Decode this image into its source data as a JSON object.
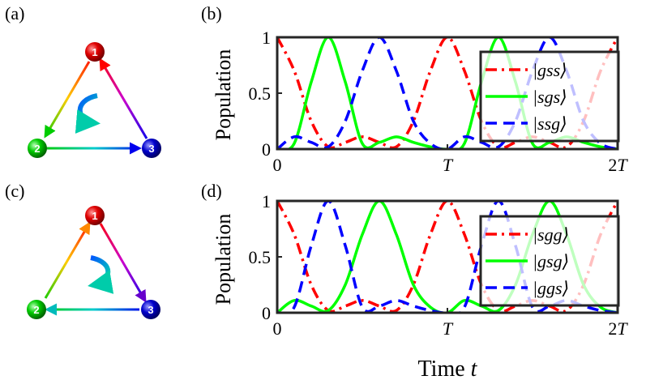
{
  "panels": {
    "a": "(a)",
    "b": "(b)",
    "c": "(c)",
    "d": "(d)"
  },
  "diagrams": [
    {
      "panel": "a",
      "direction": "counterclockwise",
      "nodes": [
        {
          "label": "1",
          "color": "#e00000"
        },
        {
          "label": "2",
          "color": "#00cc00"
        },
        {
          "label": "3",
          "color": "#0000cc"
        }
      ]
    },
    {
      "panel": "c",
      "direction": "clockwise",
      "nodes": [
        {
          "label": "1",
          "color": "#e00000"
        },
        {
          "label": "2",
          "color": "#00cc00"
        },
        {
          "label": "3",
          "color": "#0000cc"
        }
      ]
    }
  ],
  "chart_data": [
    {
      "panel": "b",
      "type": "line",
      "ylabel": "Population",
      "xlabel": "",
      "xlim": [
        0,
        2
      ],
      "ylim": [
        0,
        1
      ],
      "xticks": [
        {
          "value": 0,
          "label": "0"
        },
        {
          "value": 1,
          "label": "T"
        },
        {
          "value": 2,
          "label": "2T"
        }
      ],
      "yticks": [
        {
          "value": 0,
          "label": "0"
        },
        {
          "value": 0.5,
          "label": "0.5"
        },
        {
          "value": 1,
          "label": "1"
        }
      ],
      "legend_position": "top-right",
      "series": [
        {
          "name": "|gss⟩",
          "name_inner": "gss",
          "color": "#ff0000",
          "dash": "dashdot",
          "x": [
            0,
            0.1,
            0.2,
            0.3,
            0.4,
            0.5,
            0.6,
            0.7,
            0.8,
            0.9,
            1.0,
            1.1,
            1.2,
            1.3,
            1.4,
            1.5,
            1.6,
            1.7,
            1.8,
            1.9,
            2.0
          ],
          "y": [
            1.0,
            0.7,
            0.25,
            0.02,
            0.06,
            0.11,
            0.06,
            0.02,
            0.25,
            0.7,
            1.0,
            0.7,
            0.25,
            0.02,
            0.06,
            0.11,
            0.06,
            0.02,
            0.25,
            0.7,
            1.0
          ]
        },
        {
          "name": "|sgs⟩",
          "name_inner": "sgs",
          "color": "#00ff00",
          "dash": "solid",
          "x": [
            0,
            0.1,
            0.2,
            0.3,
            0.4,
            0.5,
            0.6,
            0.7,
            0.8,
            0.9,
            1.0,
            1.1,
            1.2,
            1.3,
            1.4,
            1.5,
            1.6,
            1.7,
            1.8,
            1.9,
            2.0
          ],
          "y": [
            0.0,
            0.05,
            0.6,
            1.0,
            0.6,
            0.05,
            0.06,
            0.11,
            0.06,
            0.02,
            0.0,
            0.05,
            0.6,
            1.0,
            0.6,
            0.05,
            0.06,
            0.11,
            0.06,
            0.02,
            0.0
          ]
        },
        {
          "name": "|ssg⟩",
          "name_inner": "ssg",
          "color": "#0000ff",
          "dash": "dashed",
          "x": [
            0,
            0.1,
            0.2,
            0.3,
            0.4,
            0.5,
            0.6,
            0.7,
            0.8,
            0.9,
            1.0,
            1.1,
            1.2,
            1.3,
            1.4,
            1.5,
            1.6,
            1.7,
            1.8,
            1.9,
            2.0
          ],
          "y": [
            0.0,
            0.11,
            0.06,
            0.02,
            0.25,
            0.7,
            1.0,
            0.7,
            0.25,
            0.05,
            0.0,
            0.11,
            0.06,
            0.02,
            0.25,
            0.7,
            1.0,
            0.7,
            0.25,
            0.05,
            0.0
          ]
        }
      ]
    },
    {
      "panel": "d",
      "type": "line",
      "ylabel": "Population",
      "xlabel": "Time t",
      "xlabel_main": "Time",
      "xlabel_var": "t",
      "xlim": [
        0,
        2
      ],
      "ylim": [
        0,
        1
      ],
      "xticks": [
        {
          "value": 0,
          "label": "0"
        },
        {
          "value": 1,
          "label": "T"
        },
        {
          "value": 2,
          "label": "2T"
        }
      ],
      "yticks": [
        {
          "value": 0,
          "label": "0"
        },
        {
          "value": 0.5,
          "label": "0.5"
        },
        {
          "value": 1,
          "label": "1"
        }
      ],
      "legend_position": "top-right",
      "series": [
        {
          "name": "|sgg⟩",
          "name_inner": "sgg",
          "color": "#ff0000",
          "dash": "dashdot",
          "x": [
            0,
            0.1,
            0.2,
            0.3,
            0.4,
            0.5,
            0.6,
            0.7,
            0.8,
            0.9,
            1.0,
            1.1,
            1.2,
            1.3,
            1.4,
            1.5,
            1.6,
            1.7,
            1.8,
            1.9,
            2.0
          ],
          "y": [
            1.0,
            0.7,
            0.25,
            0.02,
            0.06,
            0.11,
            0.06,
            0.02,
            0.25,
            0.7,
            1.0,
            0.7,
            0.25,
            0.02,
            0.06,
            0.11,
            0.06,
            0.02,
            0.25,
            0.7,
            1.0
          ]
        },
        {
          "name": "|gsg⟩",
          "name_inner": "gsg",
          "color": "#00ff00",
          "dash": "solid",
          "x": [
            0,
            0.1,
            0.2,
            0.3,
            0.4,
            0.5,
            0.6,
            0.7,
            0.8,
            0.9,
            1.0,
            1.1,
            1.2,
            1.3,
            1.4,
            1.5,
            1.6,
            1.7,
            1.8,
            1.9,
            2.0
          ],
          "y": [
            0.0,
            0.11,
            0.06,
            0.02,
            0.25,
            0.7,
            1.0,
            0.7,
            0.25,
            0.05,
            0.0,
            0.11,
            0.06,
            0.02,
            0.25,
            0.7,
            1.0,
            0.7,
            0.25,
            0.05,
            0.0
          ]
        },
        {
          "name": "|ggs⟩",
          "name_inner": "ggs",
          "color": "#0000ff",
          "dash": "dashed",
          "x": [
            0,
            0.1,
            0.2,
            0.3,
            0.4,
            0.5,
            0.6,
            0.7,
            0.8,
            0.9,
            1.0,
            1.1,
            1.2,
            1.3,
            1.4,
            1.5,
            1.6,
            1.7,
            1.8,
            1.9,
            2.0
          ],
          "y": [
            0.0,
            0.05,
            0.6,
            1.0,
            0.6,
            0.05,
            0.06,
            0.11,
            0.06,
            0.02,
            0.0,
            0.05,
            0.6,
            1.0,
            0.6,
            0.05,
            0.06,
            0.11,
            0.06,
            0.02,
            0.0
          ]
        }
      ]
    }
  ]
}
